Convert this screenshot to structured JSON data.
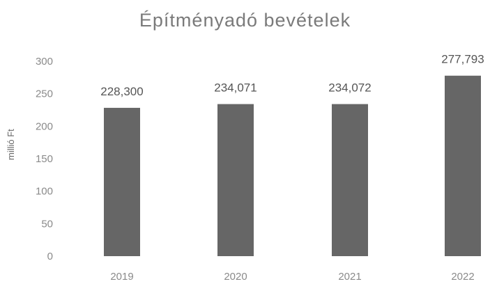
{
  "chart_data": {
    "type": "bar",
    "title": "Építményadó bevételek",
    "xlabel": "",
    "ylabel": "millió Ft",
    "categories": [
      "2019",
      "2020",
      "2021",
      "2022"
    ],
    "values": [
      228.3,
      234.071,
      234.072,
      277.793
    ],
    "data_labels": [
      "228,300",
      "234,071",
      "234,072",
      "277,793"
    ],
    "y_ticks": [
      "0",
      "50",
      "100",
      "150",
      "200",
      "250",
      "300"
    ],
    "ylim": [
      0,
      300
    ],
    "grid": false,
    "legend": "none",
    "bar_color": "#666666"
  }
}
